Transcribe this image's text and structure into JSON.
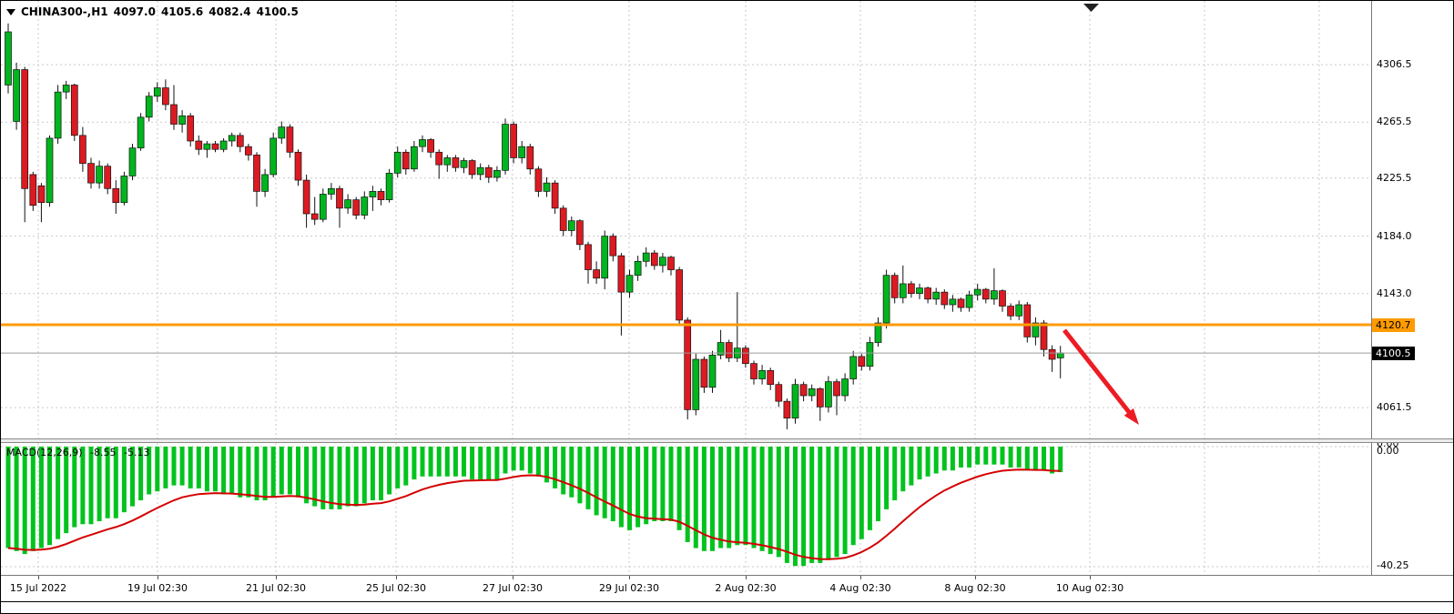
{
  "header": {
    "symbol": "CHINA300-,H1",
    "open": "4097.0",
    "high": "4105.6",
    "low": "4082.4",
    "close": "4100.5"
  },
  "indicator": {
    "name": "MACD(12,26,9)",
    "value": "-8.55",
    "signal": "-5.13"
  },
  "price_axis": {
    "line_label": "4120.7",
    "line_color": "#FF9B00",
    "bid_label": "4100.5",
    "bid_bg": "#000000",
    "bid_fg": "#ffffff"
  },
  "annotations": {
    "arrow_color": "#ED1C24",
    "arrow_meaning": "downward breakout arrow"
  },
  "chart_data": [
    {
      "type": "candlestick",
      "title": "CHINA300-,H1",
      "timeframe": "H1",
      "ylim": [
        4040,
        4345
      ],
      "y_ticks": [
        4306.5,
        4265.5,
        4225.5,
        4184.0,
        4143.0,
        4061.5
      ],
      "x_tick_labels": [
        "15 Jul 2022",
        "19 Jul 02:30",
        "21 Jul 02:30",
        "25 Jul 02:30",
        "27 Jul 02:30",
        "29 Jul 02:30",
        "2 Aug 02:30",
        "4 Aug 02:30",
        "8 Aug 02:30",
        "10 Aug 02:30"
      ],
      "up_color": "#00B51E",
      "down_color": "#DC1A22",
      "horizontal_line": {
        "price": 4120.7,
        "color": "#FF9B00"
      },
      "bid_price": 4100.5,
      "last_candle_ohlc": [
        4097.0,
        4105.6,
        4082.4,
        4100.5
      ],
      "candles": [
        [
          4292,
          4336,
          4286,
          4330
        ],
        [
          4266,
          4308,
          4260,
          4303
        ],
        [
          4303,
          4305,
          4194,
          4218
        ],
        [
          4228,
          4230,
          4202,
          4206
        ],
        [
          4220,
          4222,
          4194,
          4208
        ],
        [
          4208,
          4256,
          4205,
          4254
        ],
        [
          4254,
          4292,
          4250,
          4287
        ],
        [
          4287,
          4295,
          4282,
          4292
        ],
        [
          4292,
          4293,
          4252,
          4256
        ],
        [
          4256,
          4262,
          4230,
          4236
        ],
        [
          4236,
          4240,
          4218,
          4222
        ],
        [
          4222,
          4238,
          4218,
          4234
        ],
        [
          4234,
          4236,
          4214,
          4218
        ],
        [
          4218,
          4224,
          4200,
          4208
        ],
        [
          4208,
          4230,
          4206,
          4227
        ],
        [
          4227,
          4250,
          4224,
          4247
        ],
        [
          4247,
          4272,
          4245,
          4269
        ],
        [
          4269,
          4287,
          4266,
          4284
        ],
        [
          4284,
          4294,
          4280,
          4290
        ],
        [
          4290,
          4296,
          4274,
          4278
        ],
        [
          4278,
          4292,
          4260,
          4264
        ],
        [
          4264,
          4274,
          4258,
          4270
        ],
        [
          4270,
          4272,
          4248,
          4252
        ],
        [
          4252,
          4256,
          4242,
          4246
        ],
        [
          4246,
          4252,
          4240,
          4250
        ],
        [
          4250,
          4252,
          4244,
          4246
        ],
        [
          4246,
          4254,
          4244,
          4252
        ],
        [
          4252,
          4258,
          4248,
          4256
        ],
        [
          4256,
          4258,
          4244,
          4248
        ],
        [
          4248,
          4250,
          4238,
          4242
        ],
        [
          4242,
          4244,
          4205,
          4216
        ],
        [
          4216,
          4232,
          4212,
          4228
        ],
        [
          4228,
          4258,
          4226,
          4254
        ],
        [
          4254,
          4266,
          4250,
          4262
        ],
        [
          4262,
          4264,
          4240,
          4244
        ],
        [
          4244,
          4246,
          4220,
          4224
        ],
        [
          4224,
          4228,
          4190,
          4200
        ],
        [
          4200,
          4212,
          4192,
          4196
        ],
        [
          4196,
          4218,
          4194,
          4214
        ],
        [
          4214,
          4222,
          4210,
          4218
        ],
        [
          4218,
          4220,
          4190,
          4204
        ],
        [
          4204,
          4214,
          4200,
          4210
        ],
        [
          4210,
          4212,
          4196,
          4199
        ],
        [
          4199,
          4216,
          4196,
          4212
        ],
        [
          4212,
          4220,
          4202,
          4216
        ],
        [
          4216,
          4218,
          4206,
          4210
        ],
        [
          4210,
          4232,
          4208,
          4229
        ],
        [
          4229,
          4248,
          4226,
          4244
        ],
        [
          4244,
          4246,
          4228,
          4232
        ],
        [
          4232,
          4252,
          4230,
          4248
        ],
        [
          4248,
          4256,
          4244,
          4253
        ],
        [
          4253,
          4254,
          4240,
          4244
        ],
        [
          4244,
          4246,
          4225,
          4235
        ],
        [
          4235,
          4242,
          4230,
          4240
        ],
        [
          4240,
          4242,
          4230,
          4233
        ],
        [
          4233,
          4240,
          4229,
          4238
        ],
        [
          4238,
          4239,
          4225,
          4228
        ],
        [
          4228,
          4236,
          4224,
          4233
        ],
        [
          4233,
          4235,
          4222,
          4226
        ],
        [
          4226,
          4234,
          4223,
          4231
        ],
        [
          4231,
          4268,
          4228,
          4264
        ],
        [
          4264,
          4266,
          4236,
          4240
        ],
        [
          4240,
          4252,
          4236,
          4248
        ],
        [
          4248,
          4250,
          4228,
          4232
        ],
        [
          4232,
          4234,
          4212,
          4216
        ],
        [
          4216,
          4226,
          4212,
          4222
        ],
        [
          4222,
          4224,
          4200,
          4204
        ],
        [
          4204,
          4206,
          4184,
          4188
        ],
        [
          4188,
          4198,
          4184,
          4195
        ],
        [
          4195,
          4196,
          4174,
          4178
        ],
        [
          4178,
          4180,
          4150,
          4160
        ],
        [
          4160,
          4166,
          4150,
          4154
        ],
        [
          4154,
          4188,
          4146,
          4184
        ],
        [
          4184,
          4186,
          4166,
          4170
        ],
        [
          4170,
          4172,
          4113,
          4144
        ],
        [
          4144,
          4160,
          4140,
          4156
        ],
        [
          4156,
          4170,
          4152,
          4166
        ],
        [
          4166,
          4176,
          4162,
          4172
        ],
        [
          4172,
          4174,
          4160,
          4163
        ],
        [
          4163,
          4172,
          4158,
          4169
        ],
        [
          4169,
          4170,
          4156,
          4160
        ],
        [
          4160,
          4162,
          4120,
          4124
        ],
        [
          4124,
          4126,
          4053,
          4060
        ],
        [
          4060,
          4100,
          4056,
          4096
        ],
        [
          4096,
          4098,
          4072,
          4076
        ],
        [
          4076,
          4102,
          4072,
          4099
        ],
        [
          4099,
          4117,
          4096,
          4108
        ],
        [
          4108,
          4110,
          4094,
          4097
        ],
        [
          4097,
          4144,
          4094,
          4104
        ],
        [
          4104,
          4106,
          4090,
          4093
        ],
        [
          4093,
          4095,
          4078,
          4082
        ],
        [
          4082,
          4092,
          4078,
          4088
        ],
        [
          4088,
          4090,
          4074,
          4078
        ],
        [
          4078,
          4080,
          4062,
          4066
        ],
        [
          4066,
          4068,
          4046,
          4054
        ],
        [
          4054,
          4082,
          4050,
          4078
        ],
        [
          4078,
          4080,
          4066,
          4070
        ],
        [
          4070,
          4078,
          4066,
          4075
        ],
        [
          4075,
          4076,
          4052,
          4062
        ],
        [
          4062,
          4084,
          4058,
          4080
        ],
        [
          4080,
          4082,
          4056,
          4070
        ],
        [
          4070,
          4086,
          4066,
          4082
        ],
        [
          4082,
          4102,
          4078,
          4098
        ],
        [
          4098,
          4100,
          4088,
          4091
        ],
        [
          4091,
          4112,
          4088,
          4108
        ],
        [
          4108,
          4126,
          4105,
          4122
        ],
        [
          4122,
          4160,
          4118,
          4156
        ],
        [
          4156,
          4158,
          4136,
          4140
        ],
        [
          4140,
          4163,
          4136,
          4150
        ],
        [
          4150,
          4152,
          4140,
          4143
        ],
        [
          4143,
          4150,
          4139,
          4147
        ],
        [
          4147,
          4148,
          4136,
          4139
        ],
        [
          4139,
          4147,
          4135,
          4144
        ],
        [
          4144,
          4146,
          4132,
          4135
        ],
        [
          4135,
          4142,
          4130,
          4139
        ],
        [
          4139,
          4140,
          4130,
          4133
        ],
        [
          4133,
          4145,
          4130,
          4142
        ],
        [
          4142,
          4150,
          4138,
          4146
        ],
        [
          4146,
          4147,
          4136,
          4139
        ],
        [
          4139,
          4161,
          4135,
          4145
        ],
        [
          4145,
          4146,
          4130,
          4134
        ],
        [
          4134,
          4136,
          4124,
          4127
        ],
        [
          4127,
          4138,
          4124,
          4135
        ],
        [
          4135,
          4137,
          4108,
          4112
        ],
        [
          4112,
          4126,
          4106,
          4122
        ],
        [
          4122,
          4124,
          4098,
          4103
        ],
        [
          4103,
          4106,
          4087,
          4096
        ],
        [
          4097,
          4105.6,
          4082.4,
          4100.5
        ]
      ]
    },
    {
      "type": "bar",
      "title": "MACD(12,26,9)",
      "ylim": [
        -40.25,
        0
      ],
      "y_tick_labels": [
        "0.00",
        "-40.25"
      ],
      "bar_color": "#00C31E",
      "signal_color": "#D40000",
      "last_value": -8.55,
      "last_signal": -5.13,
      "values": [
        -34,
        -35,
        -36,
        -35,
        -34,
        -33,
        -31,
        -29,
        -27,
        -26,
        -26,
        -25,
        -24,
        -24,
        -22,
        -20,
        -18,
        -16,
        -15,
        -14,
        -13,
        -13,
        -14,
        -14,
        -15,
        -15,
        -16,
        -16,
        -17,
        -17,
        -18,
        -18,
        -17,
        -16,
        -16,
        -17,
        -19,
        -20,
        -21,
        -21,
        -21,
        -20,
        -20,
        -19,
        -18,
        -18,
        -16,
        -14,
        -13,
        -11,
        -10,
        -10,
        -10,
        -10,
        -10,
        -10,
        -11,
        -11,
        -11,
        -11,
        -9,
        -8,
        -8,
        -9,
        -10,
        -12,
        -14,
        -16,
        -17,
        -19,
        -21,
        -23,
        -24,
        -25,
        -27,
        -28,
        -27,
        -26,
        -25,
        -25,
        -25,
        -28,
        -32,
        -34,
        -35,
        -35,
        -34,
        -34,
        -33,
        -33,
        -34,
        -35,
        -36,
        -37,
        -39,
        -40,
        -40,
        -39,
        -39,
        -38,
        -37,
        -36,
        -33,
        -31,
        -28,
        -25,
        -21,
        -18,
        -15,
        -13,
        -11,
        -10,
        -9,
        -8,
        -8,
        -7,
        -7,
        -6,
        -6,
        -6,
        -6,
        -7,
        -7,
        -8,
        -8,
        -8,
        -9,
        -8.55
      ]
    }
  ]
}
